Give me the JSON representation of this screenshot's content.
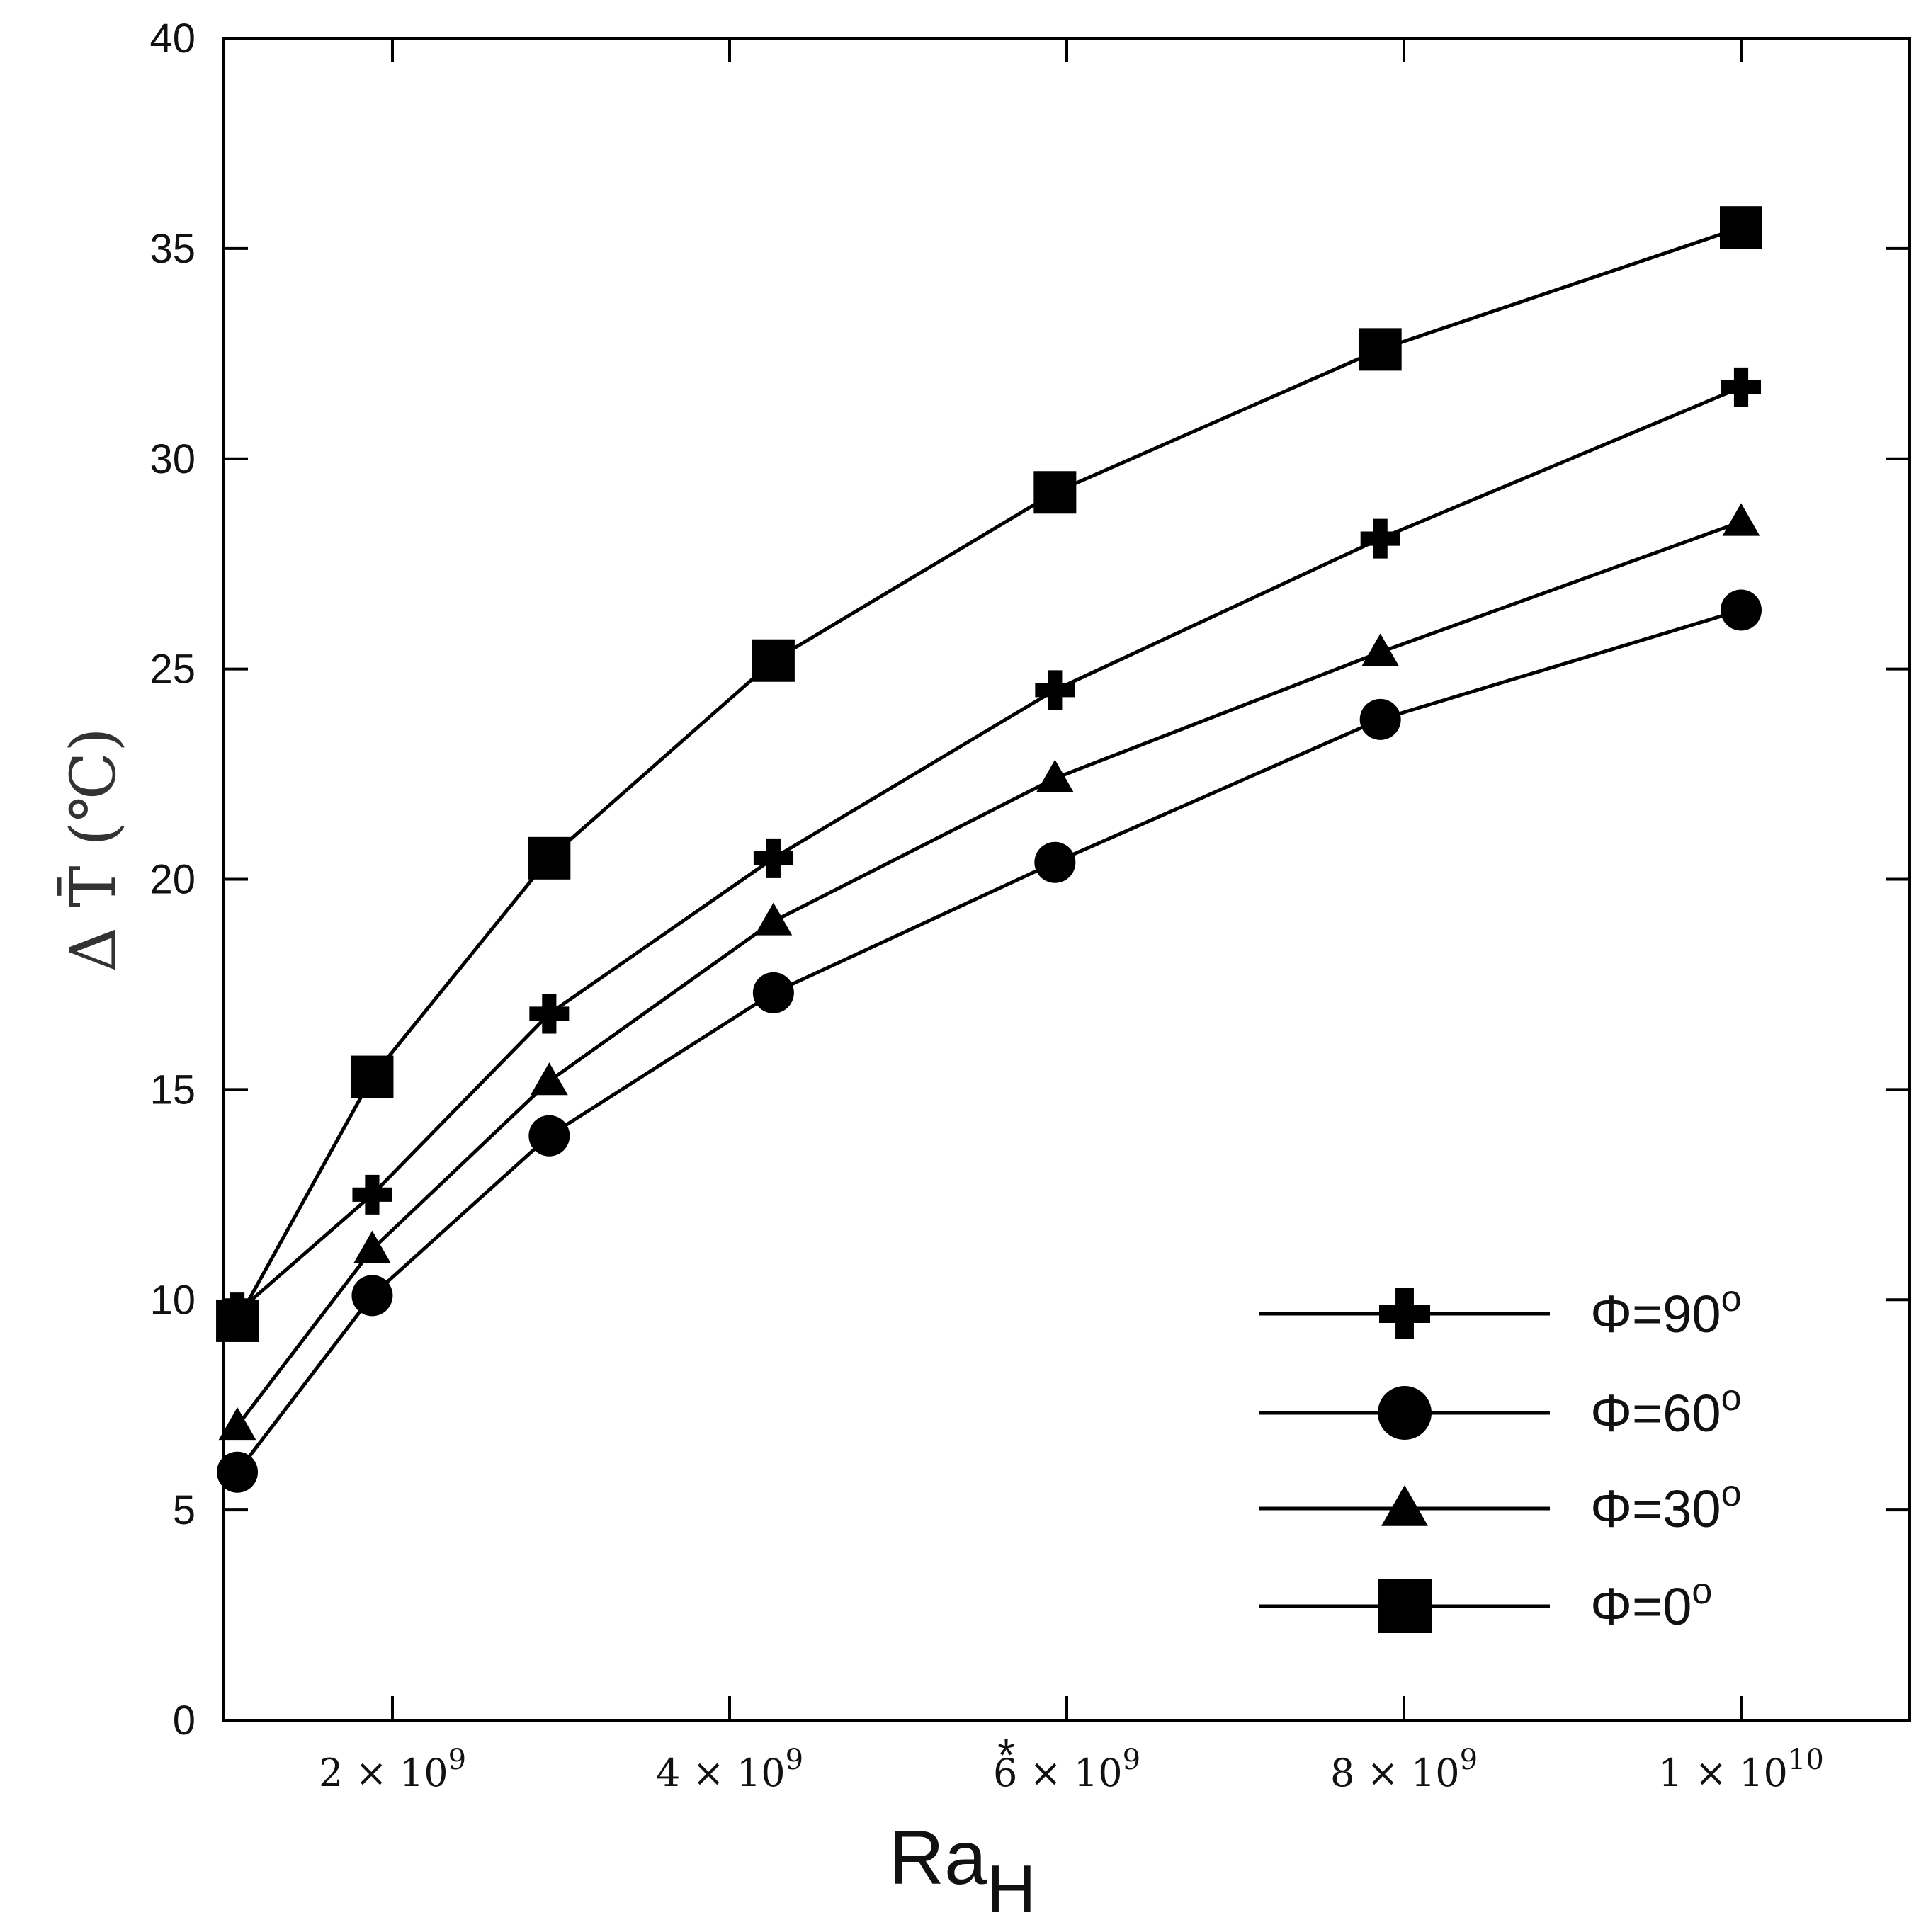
{
  "chart_data": {
    "type": "line",
    "title": "",
    "xlabel": "Ra",
    "xlabel_subscript": "H",
    "xlabel_superscript": "*",
    "ylabel": "Δ T̄ (℃)",
    "ylim": [
      0,
      40
    ],
    "xlim": [
      1000000000.0,
      11000000000.0
    ],
    "grid": false,
    "legend_position": "bottom-right",
    "y_ticks": [
      0,
      5,
      10,
      15,
      20,
      25,
      30,
      35,
      40
    ],
    "x_ticks": [
      {
        "value": 2000000000.0,
        "mantissa": "2",
        "times": "×",
        "base": "10",
        "exp": "9"
      },
      {
        "value": 4000000000.0,
        "mantissa": "4",
        "times": "×",
        "base": "10",
        "exp": "9"
      },
      {
        "value": 6000000000.0,
        "mantissa": "6",
        "times": "×",
        "base": "10",
        "exp": "9"
      },
      {
        "value": 8000000000.0,
        "mantissa": "8",
        "times": "×",
        "base": "10",
        "exp": "9"
      },
      {
        "value": 10000000000.0,
        "mantissa": "1",
        "times": "×",
        "base": "10",
        "exp": "10"
      }
    ],
    "x": [
      1080000000.0,
      1880000000.0,
      2930000000.0,
      4260000000.0,
      5930000000.0,
      7860000000.0,
      10000000000.0
    ],
    "series": [
      {
        "name": "Φ=90",
        "degree": "o",
        "marker": "plus",
        "values": [
          9.7,
          12.5,
          16.8,
          20.5,
          24.5,
          28.1,
          31.7
        ]
      },
      {
        "name": "Φ=60",
        "degree": "o",
        "marker": "circle",
        "values": [
          5.9,
          10.1,
          13.9,
          17.3,
          20.4,
          23.8,
          26.4
        ]
      },
      {
        "name": "Φ=30",
        "degree": "o",
        "marker": "triangle",
        "values": [
          7.0,
          11.2,
          15.2,
          19.0,
          22.4,
          25.4,
          28.5
        ]
      },
      {
        "name": "Φ=0",
        "degree": "o",
        "marker": "square",
        "values": [
          9.5,
          15.3,
          20.5,
          25.2,
          29.2,
          32.6,
          35.5
        ]
      }
    ]
  }
}
